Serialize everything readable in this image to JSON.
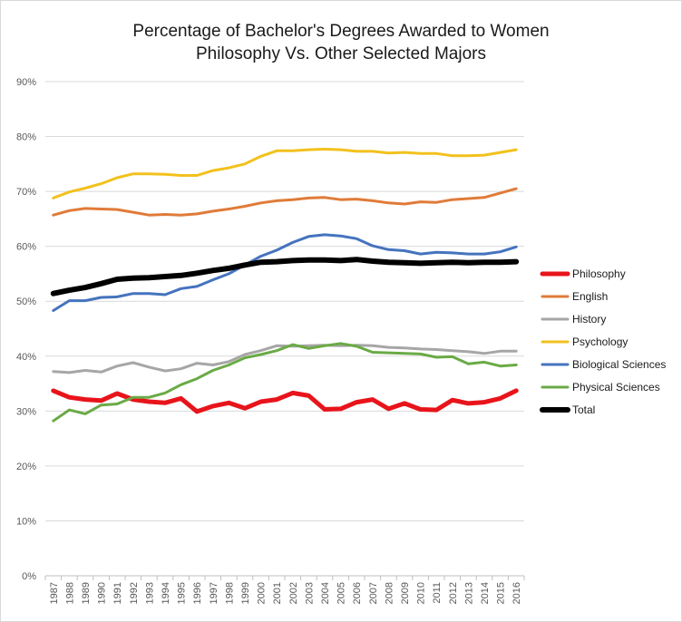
{
  "chart_data": {
    "type": "line",
    "title": "Percentage of Bachelor's Degrees Awarded to Women",
    "subtitle": "Philosophy Vs. Other Selected Majors",
    "xlabel": "",
    "ylabel": "",
    "ylim": [
      0,
      90
    ],
    "y_ticks": [
      "0%",
      "10%",
      "20%",
      "30%",
      "40%",
      "50%",
      "60%",
      "70%",
      "80%",
      "90%"
    ],
    "grid": "horizontal",
    "legend_position": "right",
    "categories": [
      "1987",
      "1988",
      "1989",
      "1990",
      "1991",
      "1992",
      "1993",
      "1994",
      "1995",
      "1996",
      "1997",
      "1998",
      "1999",
      "2000",
      "2001",
      "2002",
      "2003",
      "2004",
      "2005",
      "2006",
      "2007",
      "2008",
      "2009",
      "2010",
      "2011",
      "2012",
      "2013",
      "2014",
      "2015",
      "2016"
    ],
    "series": [
      {
        "name": "Philosophy",
        "color": "#e8141b",
        "values": [
          33.7,
          32.5,
          32.1,
          31.9,
          33.2,
          32.1,
          31.7,
          31.5,
          32.3,
          29.9,
          30.9,
          31.5,
          30.5,
          31.7,
          32.1,
          33.3,
          32.8,
          30.3,
          30.4,
          31.6,
          32.1,
          30.4,
          31.4,
          30.3,
          30.2,
          32.0,
          31.4,
          31.6,
          32.3,
          33.7
        ]
      },
      {
        "name": "English",
        "color": "#e07b39",
        "values": [
          65.7,
          66.5,
          66.9,
          66.8,
          66.7,
          66.2,
          65.7,
          65.8,
          65.7,
          65.9,
          66.4,
          66.8,
          67.3,
          67.9,
          68.3,
          68.5,
          68.8,
          68.9,
          68.5,
          68.6,
          68.3,
          67.9,
          67.7,
          68.1,
          68.0,
          68.5,
          68.7,
          68.9,
          69.7,
          70.5
        ]
      },
      {
        "name": "History",
        "color": "#a6a6a6",
        "values": [
          37.2,
          37.0,
          37.4,
          37.1,
          38.2,
          38.8,
          38.0,
          37.3,
          37.7,
          38.7,
          38.4,
          39.0,
          40.3,
          41.0,
          41.9,
          41.8,
          41.9,
          42.0,
          41.9,
          42.0,
          41.9,
          41.6,
          41.5,
          41.3,
          41.2,
          41.0,
          40.8,
          40.5,
          40.9,
          40.9
        ]
      },
      {
        "name": "Psychology",
        "color": "#f2c11d",
        "values": [
          68.8,
          69.9,
          70.6,
          71.4,
          72.5,
          73.2,
          73.2,
          73.1,
          72.9,
          72.9,
          73.8,
          74.3,
          75.0,
          76.4,
          77.4,
          77.4,
          77.6,
          77.7,
          77.6,
          77.3,
          77.3,
          77.0,
          77.1,
          76.9,
          76.9,
          76.5,
          76.5,
          76.6,
          77.1,
          77.6
        ]
      },
      {
        "name": "Biological Sciences",
        "color": "#4573be",
        "values": [
          48.3,
          50.1,
          50.1,
          50.7,
          50.8,
          51.4,
          51.4,
          51.2,
          52.3,
          52.7,
          53.9,
          55.0,
          56.6,
          58.2,
          59.3,
          60.7,
          61.8,
          62.1,
          61.9,
          61.4,
          60.1,
          59.4,
          59.2,
          58.6,
          58.9,
          58.8,
          58.6,
          58.6,
          59.0,
          59.9
        ]
      },
      {
        "name": "Physical Sciences",
        "color": "#6aaa46",
        "values": [
          28.2,
          30.2,
          29.5,
          31.1,
          31.3,
          32.5,
          32.5,
          33.3,
          34.8,
          35.9,
          37.4,
          38.4,
          39.7,
          40.3,
          41.0,
          42.1,
          41.4,
          41.9,
          42.3,
          41.8,
          40.7,
          40.6,
          40.5,
          40.4,
          39.8,
          39.9,
          38.6,
          38.9,
          38.2,
          38.4
        ]
      },
      {
        "name": "Total",
        "color": "#000000",
        "values": [
          51.4,
          52.0,
          52.5,
          53.2,
          54.0,
          54.2,
          54.3,
          54.5,
          54.7,
          55.1,
          55.6,
          56.0,
          56.6,
          57.1,
          57.2,
          57.4,
          57.5,
          57.5,
          57.4,
          57.6,
          57.3,
          57.1,
          57.0,
          56.9,
          57.0,
          57.1,
          57.0,
          57.1,
          57.1,
          57.2
        ]
      }
    ]
  }
}
